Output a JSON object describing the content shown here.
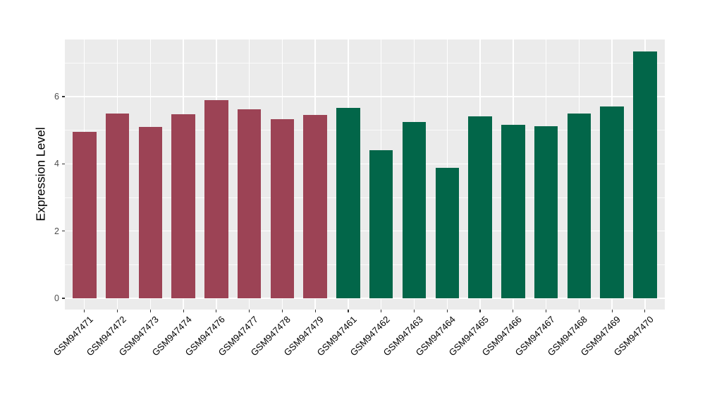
{
  "figure": {
    "background": "#FFFFFF",
    "panel_background": "#EBEBEB",
    "gridline_color": "#FFFFFF",
    "axis_tick_color": "#333333",
    "y_tick_text_color": "#4D4D4D",
    "x_tick_text_color": "#000000"
  },
  "chart_data": {
    "type": "bar",
    "title": "",
    "xlabel": "",
    "ylabel": "Expression Level",
    "categories": [
      "GSM947471",
      "GSM947472",
      "GSM947473",
      "GSM947474",
      "GSM947476",
      "GSM947477",
      "GSM947478",
      "GSM947479",
      "GSM947461",
      "GSM947462",
      "GSM947463",
      "GSM947464",
      "GSM947465",
      "GSM947466",
      "GSM947467",
      "GSM947468",
      "GSM947469",
      "GSM947470"
    ],
    "values": [
      4.95,
      5.5,
      5.1,
      5.47,
      5.9,
      5.62,
      5.32,
      5.46,
      5.66,
      4.4,
      5.24,
      3.89,
      5.42,
      5.17,
      5.12,
      5.5,
      5.7,
      7.35
    ],
    "bar_groups": [
      "maroon",
      "maroon",
      "maroon",
      "maroon",
      "maroon",
      "maroon",
      "maroon",
      "maroon",
      "green",
      "green",
      "green",
      "green",
      "green",
      "green",
      "green",
      "green",
      "green",
      "green"
    ],
    "group_colors": {
      "maroon": "#9C4355",
      "green": "#026649"
    },
    "yticks": [
      0,
      2,
      4,
      6
    ],
    "ytick_labels": [
      "0",
      "2",
      "4",
      "6"
    ],
    "minor_gridlines": [
      1,
      3,
      5,
      7
    ],
    "ylim": [
      0,
      7.72
    ],
    "grid": true,
    "legend": "none",
    "x_label_rotation_deg": 45
  }
}
